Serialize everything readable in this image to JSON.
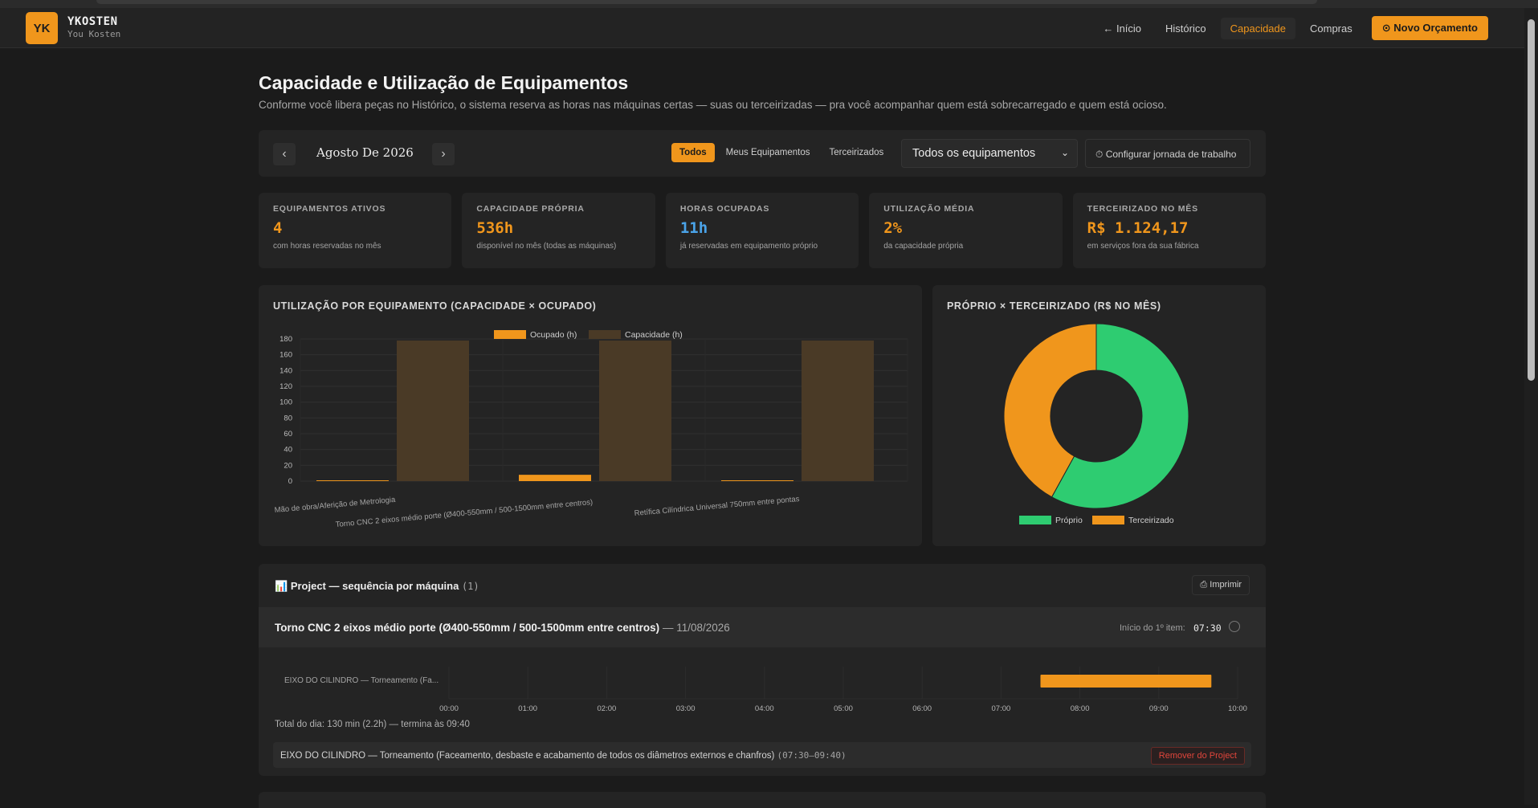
{
  "header": {
    "logo": "YK",
    "brand_name": "YKOSTEN",
    "brand_sub": "You Kosten",
    "nav": [
      "← Início",
      "Histórico",
      "Capacidade",
      "Compras"
    ],
    "active_nav": "Capacidade",
    "cta": "⊙ Novo Orçamento"
  },
  "page": {
    "title": "Capacidade e Utilização de Equipamentos",
    "subtitle": "Conforme você libera peças no Histórico, o sistema reserva as horas nas máquinas certas — suas ou terceirizadas — pra você acompanhar quem está sobrecarregado e quem está ocioso."
  },
  "toolbar": {
    "prev": "‹",
    "next": "›",
    "month": "Agosto De 2026",
    "filters": [
      "Todos",
      "Meus Equipamentos",
      "Terceirizados"
    ],
    "active_filter": "Todos",
    "equipment_select": "Todos os equipamentos",
    "jornada": "⏱ Configurar jornada de trabalho"
  },
  "kpis": [
    {
      "label": "EQUIPAMENTOS ATIVOS",
      "value": "4",
      "note": "com horas reservadas no mês",
      "color": "#f0961c"
    },
    {
      "label": "CAPACIDADE PRÓPRIA",
      "value": "536h",
      "note": "disponível no mês (todas as máquinas)",
      "color": "#f0961c"
    },
    {
      "label": "HORAS OCUPADAS",
      "value": "11h",
      "note": "já reservadas em equipamento próprio",
      "color": "#4aa3e8"
    },
    {
      "label": "UTILIZAÇÃO MÉDIA",
      "value": "2%",
      "note": "da capacidade própria",
      "color": "#f0961c"
    },
    {
      "label": "TERCEIRIZADO NO MÊS",
      "value": "R$ 1.124,17",
      "note": "em serviços fora da sua fábrica",
      "color": "#f0961c"
    }
  ],
  "chart_data": [
    {
      "type": "bar",
      "title": "UTILIZAÇÃO POR EQUIPAMENTO (CAPACIDADE × OCUPADO)",
      "categories": [
        "Mão de obra/Aferição de Metrologia",
        "Torno CNC 2 eixos médio porte (Ø400-550mm / 500-1500mm entre centros)",
        "Retífica Cilíndrica Universal 750mm entre pontas"
      ],
      "series": [
        {
          "name": "Ocupado (h)",
          "values": [
            1,
            8,
            1
          ],
          "color": "#f0961c"
        },
        {
          "name": "Capacidade (h)",
          "values": [
            178,
            178,
            178
          ],
          "color": "#4a3a26"
        }
      ],
      "yticks": [
        0,
        20,
        40,
        60,
        80,
        100,
        120,
        140,
        160,
        180
      ],
      "ylim": [
        0,
        180
      ],
      "legend": "top-center",
      "grid": true
    },
    {
      "type": "pie",
      "title": "PRÓPRIO × TERCEIRIZADO (R$ NO MÊS)",
      "labels": [
        "Próprio",
        "Terceirizado"
      ],
      "values": [
        58,
        42
      ],
      "colors": [
        "#2ecc71",
        "#f0961c"
      ],
      "donut": true,
      "legend": "bottom"
    }
  ],
  "project": {
    "icon": "📊",
    "title": "Project — sequência por máquina",
    "count": "(1)",
    "print": "⎙ Imprimir",
    "machine": "Torno CNC 2 eixos médio porte (Ø400-550mm / 500-1500mm entre centros)",
    "date": "— 11/08/2026",
    "start_label": "Início do 1º item:",
    "start_value": "07:30",
    "gantt": {
      "row_label": "EIXO DO CILINDRO — Torneamento (Fa...",
      "ticks": [
        "00:00",
        "01:00",
        "02:00",
        "03:00",
        "04:00",
        "05:00",
        "06:00",
        "07:00",
        "08:00",
        "09:00",
        "10:00"
      ],
      "range_hours": [
        0,
        10
      ],
      "task": {
        "start_hour": 7.5,
        "end_hour": 9.667,
        "color": "#f0961c"
      }
    },
    "total": "Total do dia: 130 min (2.2h) — termina às 09:40",
    "task_text": "EIXO DO CILINDRO — Torneamento (Faceamento, desbaste e acabamento de todos os diâmetros externos e chanfros)",
    "task_time": "(07:30–09:40)",
    "remove": "Remover do Project"
  }
}
